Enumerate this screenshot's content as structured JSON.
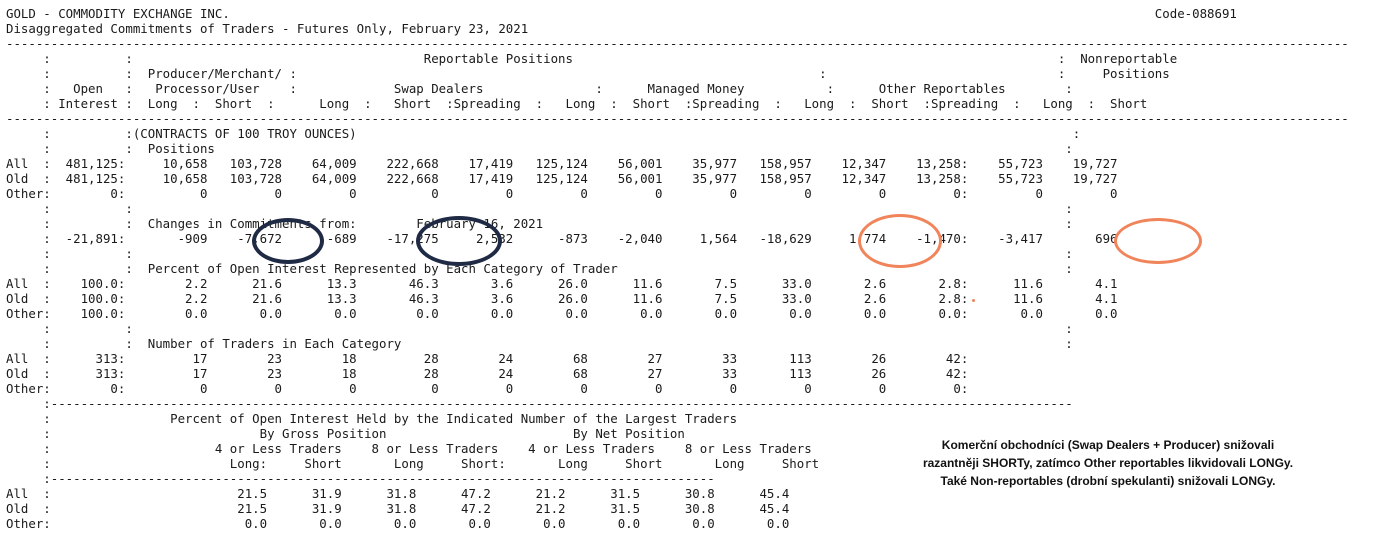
{
  "report": {
    "lines": [
      "GOLD - COMMODITY EXCHANGE INC.                                                                                                                            Code-088691",
      "Disaggregated Commitments of Traders - Futures Only, February 23, 2021",
      "------------------------------------------------------------------------------------------------------------------------------------------------------------------------------------",
      "     :          :                                       Reportable Positions                                                                 :  Nonreportable",
      "     :          :  Producer/Merchant/ :                                                                      :                               :     Positions",
      "     :   Open   :   Processor/User    :             Swap Dealers               :      Managed Money           :      Other Reportables        :",
      "     : Interest :  Long  :  Short  :      Long  :   Short  :Spreading  :   Long  :  Short  :Spreading  :   Long  :  Short  :Spreading  :   Long  :  Short",
      "------------------------------------------------------------------------------------------------------------------------------------------------------------------------------------",
      "     :          :(CONTRACTS OF 100 TROY OUNCES)                                                                                                :",
      "     :          :  Positions                                                                                                                  :",
      "All  :  481,125:     10,658   103,728    64,009    222,668    17,419   125,124    56,001    35,977   158,957    12,347    13,258:    55,723    19,727",
      "Old  :  481,125:     10,658   103,728    64,009    222,668    17,419   125,124    56,001    35,977   158,957    12,347    13,258:    55,723    19,727",
      "Other:        0:          0         0         0          0         0         0         0         0         0         0         0:         0         0",
      "     :          :                                                                                                                             :",
      "     :          :  Changes in Commitments from:        February 16, 2021                                                                      :",
      "     :  -21,891:       -909    -7,672      -689    -17,275     2,532      -873    -2,040     1,564   -18,629     1,774    -1,470:    -3,417       696",
      "     :          :                                                                                                                             :",
      "     :          :  Percent of Open Interest Represented by Each Category of Trader                                                            :",
      "All  :    100.0:        2.2      21.6      13.3       46.3       3.6      26.0      11.6       7.5      33.0       2.6       2.8:      11.6       4.1",
      "Old  :    100.0:        2.2      21.6      13.3       46.3       3.6      26.0      11.6       7.5      33.0       2.6       2.8:      11.6       4.1",
      "Other:    100.0:        0.0       0.0       0.0        0.0       0.0       0.0       0.0       0.0       0.0       0.0       0.0:       0.0       0.0",
      "     :          :                                                                                                                             :",
      "     :          :  Number of Traders in Each Category                                                                                         :",
      "All  :      313:         17        23        18         28        24        68        27        33       113        26        42:",
      "Old  :      313:         17        23        18         28        24        68        27        33       113        26        42:",
      "Other:        0:          0         0         0          0         0         0         0         0         0         0         0:",
      "     :-----------------------------------------------------------------------------------------------------------------------------------------",
      "     :                Percent of Open Interest Held by the Indicated Number of the Largest Traders",
      "     :                            By Gross Position                         By Net Position",
      "     :                      4 or Less Traders    8 or Less Traders    4 or Less Traders    8 or Less Traders",
      "     :                        Long:     Short       Long     Short:       Long     Short       Long     Short",
      "     :-----------------------------------------------------------------------------------------",
      "All  :                         21.5      31.9      31.8      47.2      21.2      31.5      30.8      45.4",
      "Old  :                         21.5      31.9      31.8      47.2      21.2      31.5      30.8      45.4",
      "Other:                          0.0       0.0       0.0       0.0       0.0       0.0       0.0       0.0"
    ]
  },
  "annotation": {
    "lines": [
      "Komerční obchodníci (Swap Dealers + Producer) snižovali",
      "razantněji SHORTy, zatímco Other reportables likvidovali LONGy.",
      "Také Non-reportables (drobní spekulanti) snižovali LONGy."
    ]
  },
  "colors": {
    "dark_circle": "#1f2a44",
    "orange_circle": "#f0845a"
  }
}
